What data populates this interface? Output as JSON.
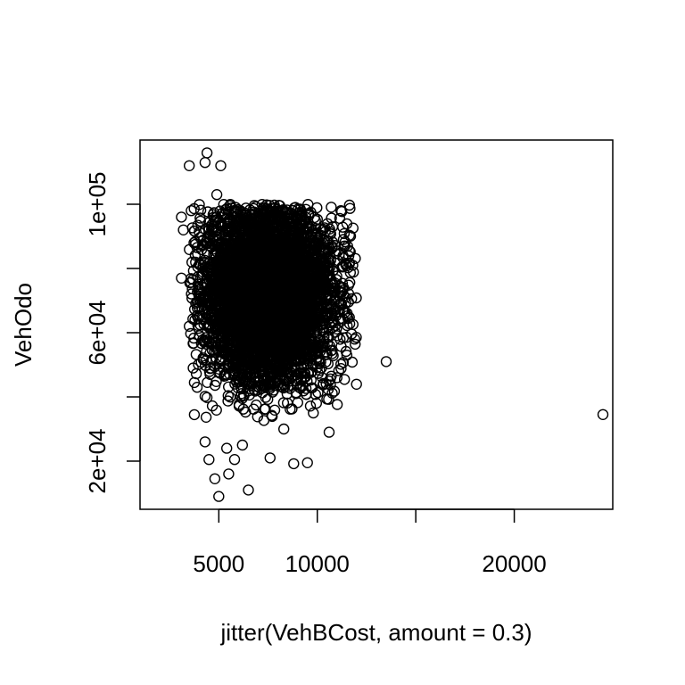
{
  "chart_data": {
    "type": "scatter",
    "title": "",
    "xlabel": "jitter(VehBCost, amount = 0.3)",
    "ylabel": "VehOdo",
    "xlim": [
      1000,
      25000
    ],
    "ylim": [
      5000,
      120000
    ],
    "x_ticks": [
      5000,
      10000,
      15000,
      20000
    ],
    "x_tick_labels": [
      "5000",
      "10000",
      "",
      "20000"
    ],
    "y_ticks": [
      20000,
      40000,
      60000,
      80000,
      100000
    ],
    "y_tick_labels": [
      "2e+04",
      "",
      "6e+04",
      "",
      "1e+05"
    ],
    "marker": "open-circle",
    "marker_color": "#000000",
    "dense_region": {
      "x_range": [
        3500,
        12000
      ],
      "y_range": [
        32000,
        100000
      ],
      "point_count": 5200,
      "peak_x": 7500,
      "peak_y": 72000
    },
    "outliers": [
      {
        "x": 24500,
        "y": 34500
      },
      {
        "x": 13500,
        "y": 51000
      },
      {
        "x": 10600,
        "y": 29000
      },
      {
        "x": 9500,
        "y": 19500
      },
      {
        "x": 8800,
        "y": 19200
      },
      {
        "x": 6500,
        "y": 11000
      },
      {
        "x": 5000,
        "y": 9000
      },
      {
        "x": 4800,
        "y": 14500
      },
      {
        "x": 5500,
        "y": 16000
      },
      {
        "x": 4500,
        "y": 20500
      },
      {
        "x": 5800,
        "y": 20500
      },
      {
        "x": 7600,
        "y": 21000
      },
      {
        "x": 4400,
        "y": 116000
      },
      {
        "x": 4300,
        "y": 113000
      },
      {
        "x": 3500,
        "y": 112000
      },
      {
        "x": 5100,
        "y": 112000
      },
      {
        "x": 4900,
        "y": 103000
      },
      {
        "x": 3200,
        "y": 92000
      },
      {
        "x": 3100,
        "y": 96000
      },
      {
        "x": 3600,
        "y": 98000
      },
      {
        "x": 3100,
        "y": 77000
      },
      {
        "x": 3500,
        "y": 62000
      },
      {
        "x": 3700,
        "y": 49000
      },
      {
        "x": 3900,
        "y": 43000
      },
      {
        "x": 11200,
        "y": 98000
      },
      {
        "x": 11400,
        "y": 87000
      },
      {
        "x": 11800,
        "y": 81000
      },
      {
        "x": 11900,
        "y": 58000
      },
      {
        "x": 11500,
        "y": 53000
      },
      {
        "x": 11000,
        "y": 46000
      },
      {
        "x": 4300,
        "y": 26000
      },
      {
        "x": 6200,
        "y": 25000
      },
      {
        "x": 5400,
        "y": 24000
      },
      {
        "x": 9800,
        "y": 35000
      },
      {
        "x": 8300,
        "y": 30000
      }
    ]
  }
}
